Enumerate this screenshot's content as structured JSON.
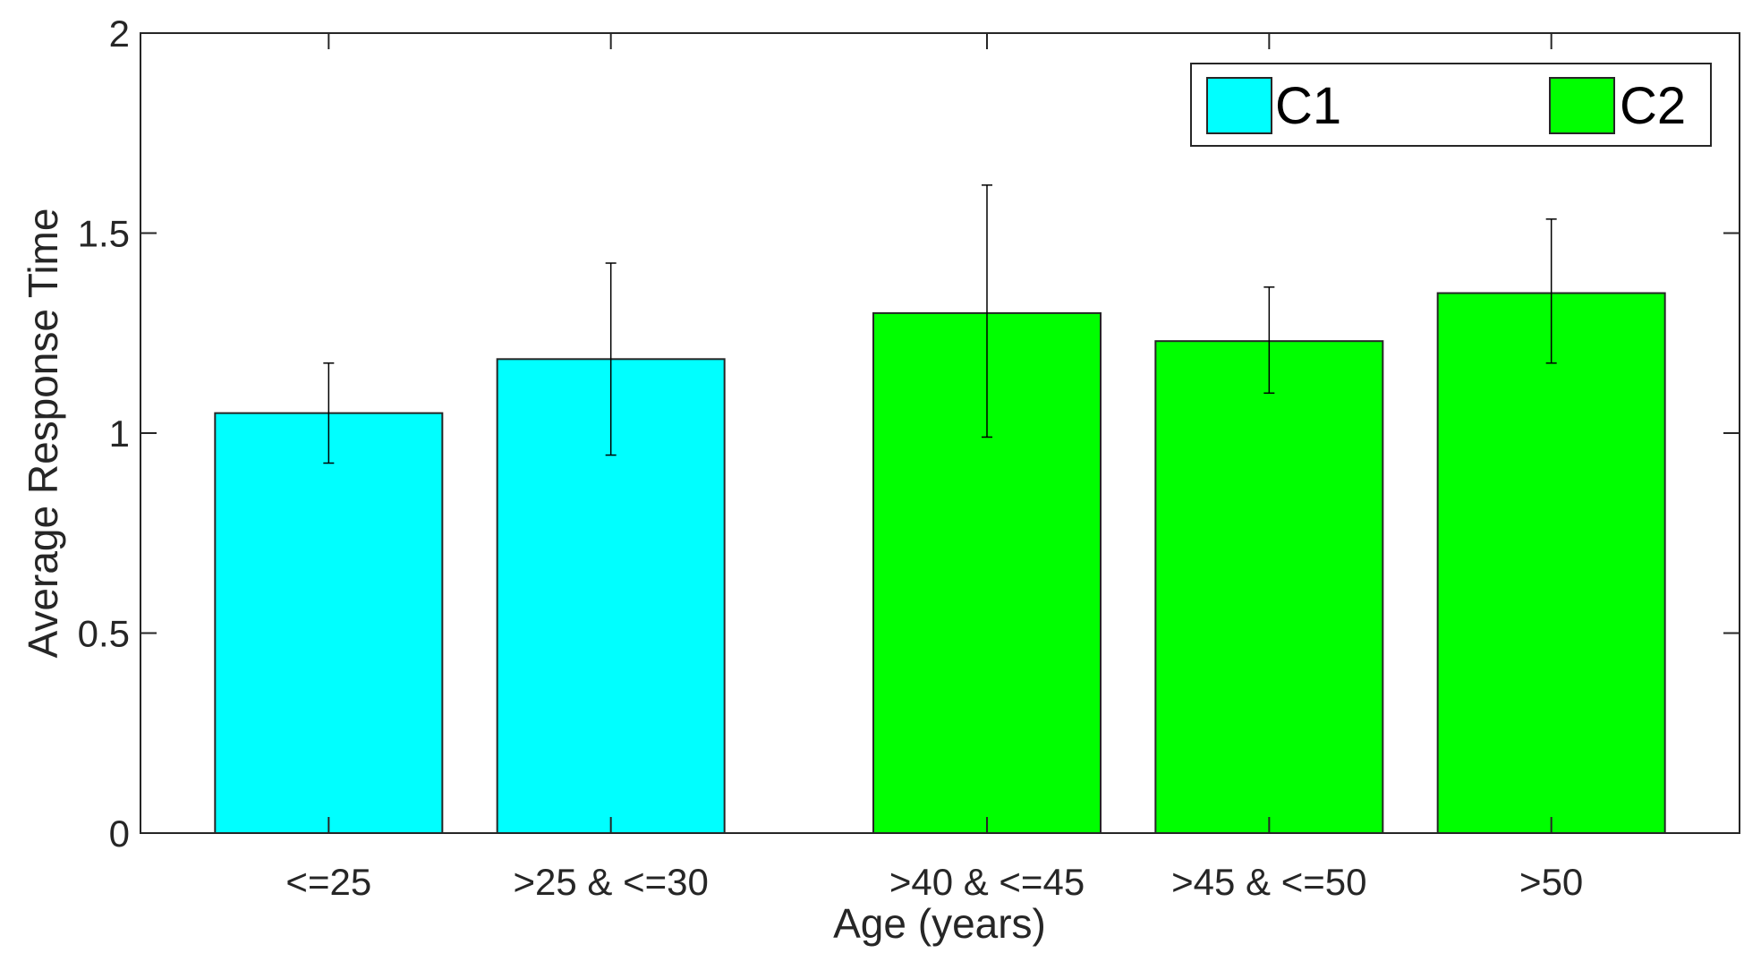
{
  "chart_data": {
    "type": "bar",
    "title": "",
    "xlabel": "Age (years)",
    "ylabel": "Average Response Time",
    "ylim": [
      0,
      2
    ],
    "yticks": [
      0,
      0.5,
      1,
      1.5,
      2
    ],
    "ytick_labels": [
      "0",
      "0.5",
      "1",
      "1.5",
      "2"
    ],
    "categories": [
      "<=25",
      ">25 & <=30",
      ">40 & <=45",
      ">45 & <=50",
      ">50"
    ],
    "x_positions": [
      1,
      2,
      3.333,
      4.333,
      5.333
    ],
    "xlim": [
      0.333,
      6
    ],
    "values": [
      1.05,
      1.185,
      1.3,
      1.23,
      1.35
    ],
    "error_low": [
      0.925,
      0.945,
      0.99,
      1.1,
      1.175
    ],
    "error_high": [
      1.175,
      1.425,
      1.62,
      1.365,
      1.535
    ],
    "bar_series": [
      "C1",
      "C1",
      "C2",
      "C2",
      "C2"
    ],
    "series": [
      {
        "name": "C1",
        "color": "#00ffff"
      },
      {
        "name": "C2",
        "color": "#00ff00"
      }
    ],
    "grid": false,
    "legend": "top-right"
  }
}
